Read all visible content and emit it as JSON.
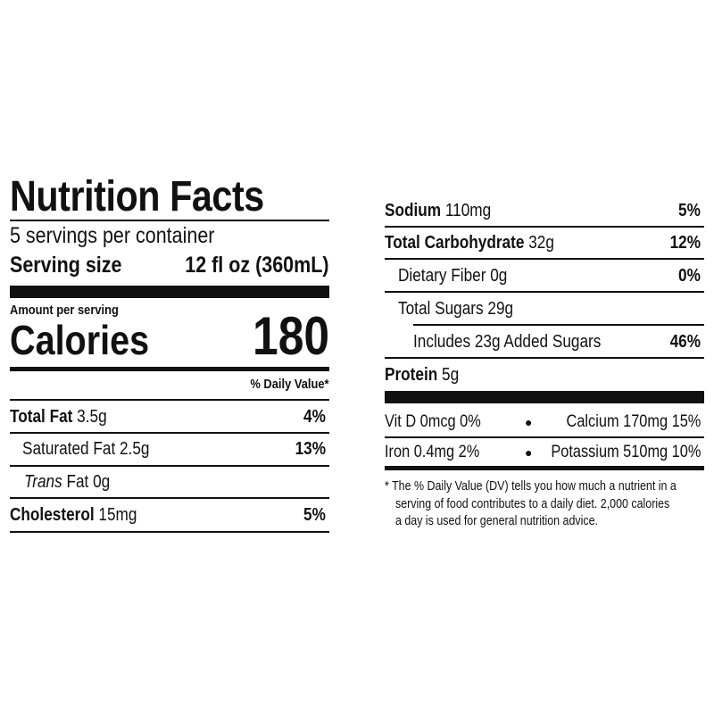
{
  "title": "Nutrition Facts",
  "servings_per_container": "5 servings per container",
  "serving_size_label": "Serving size",
  "serving_size_value": "12 fl oz (360mL)",
  "amount_per_serving": "Amount per serving",
  "calories_label": "Calories",
  "calories_value": "180",
  "daily_value_header": "% Daily Value*",
  "left_rows": [
    {
      "label": "Total Fat",
      "amount": "3.5g",
      "dv": "4%"
    },
    {
      "label": "Saturated Fat 2.5g",
      "dv": "13%"
    },
    {
      "label_italic": "Trans",
      "label": "Fat 0g"
    },
    {
      "label": "Cholesterol",
      "amount": "15mg",
      "dv": "5%"
    }
  ],
  "right_rows": [
    {
      "label": "Sodium",
      "amount": "110mg",
      "dv": "5%"
    },
    {
      "label": "Total Carbohydrate",
      "amount": "32g",
      "dv": "12%"
    },
    {
      "label": "Dietary Fiber 0g",
      "dv": "0%"
    },
    {
      "label": "Total Sugars 29g"
    },
    {
      "label": "Includes 23g Added Sugars",
      "dv": "46%"
    },
    {
      "label": "Protein",
      "amount": "5g"
    }
  ],
  "micronutrients": [
    {
      "left": "Vit D 0mcg 0%",
      "right": "Calcium 170mg 15%"
    },
    {
      "left": "Iron 0.4mg 2%",
      "right": "Potassium 510mg 10%"
    }
  ],
  "bullet": "●",
  "footnote": [
    "* The % Daily Value (DV) tells you how much a nutrient in a",
    "serving of food contributes to a daily diet. 2,000 calories",
    "a day is used for general nutrition advice."
  ]
}
